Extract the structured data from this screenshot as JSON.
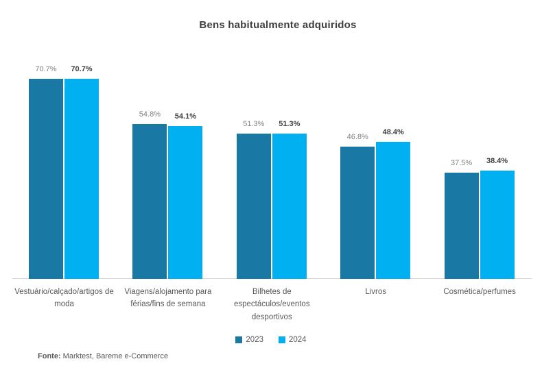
{
  "chart_data": {
    "type": "bar",
    "title": "Bens habitualmente adquiridos",
    "categories": [
      "Vestuário/calçado/artigos de moda",
      "Viagens/alojamento para férias/fins de semana",
      "Bilhetes de espectáculos/eventos desportivos",
      "Livros",
      "Cosmética/perfumes"
    ],
    "series": [
      {
        "name": "2023",
        "color": "#1979A4",
        "values": [
          70.7,
          54.8,
          51.3,
          46.8,
          37.5
        ]
      },
      {
        "name": "2024",
        "color": "#00B0F0",
        "values": [
          70.7,
          54.1,
          51.3,
          48.4,
          38.4
        ]
      }
    ],
    "value_suffix": "%",
    "ylim": [
      0,
      80
    ],
    "grid": false,
    "legend_position": "bottom",
    "xlabel": "",
    "ylabel": "",
    "colors": {
      "label_2023": "#7f7f7f",
      "label_2024": "#404040",
      "title": "#3f3f3f",
      "category_label": "#595959",
      "axis_line": "#d9d9d9"
    }
  },
  "footer": {
    "source_label": "Fonte:",
    "source_text": " Marktest, Bareme e-Commerce"
  }
}
